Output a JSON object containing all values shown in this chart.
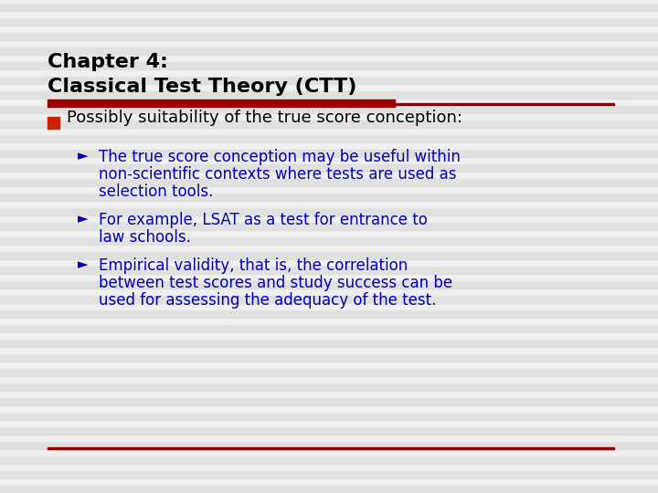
{
  "title_line1": "Chapter 4:",
  "title_line2": "Classical Test Theory (CTT)",
  "background_color": "#F0F0F0",
  "stripe_color": "#E0E0E0",
  "title_color": "#000000",
  "red_bar_color": "#A00000",
  "thin_bar_color": "#8B0000",
  "bullet_sq_color": "#CC2200",
  "arrow_color": "#0000BB",
  "text_color": "#000000",
  "sub_text_color": "#0000BB",
  "main_bullet": "Possibly suitability of the true score conception:",
  "sub_bullet_1_l1": "The true score conception may be useful within",
  "sub_bullet_1_l2": "non-scientific contexts where tests are used as",
  "sub_bullet_1_l3": "selection tools.",
  "sub_bullet_2_l1": "For example, LSAT as a test for entrance to",
  "sub_bullet_2_l2": "law schools.",
  "sub_bullet_3_l1": "Empirical validity, that is, the correlation",
  "sub_bullet_3_l2": "between test scores and study success can be",
  "sub_bullet_3_l3": "used for assessing the adequacy of the test.",
  "bottom_divider_color": "#8B0000",
  "figwidth": 7.2,
  "figheight": 5.4,
  "dpi": 100
}
